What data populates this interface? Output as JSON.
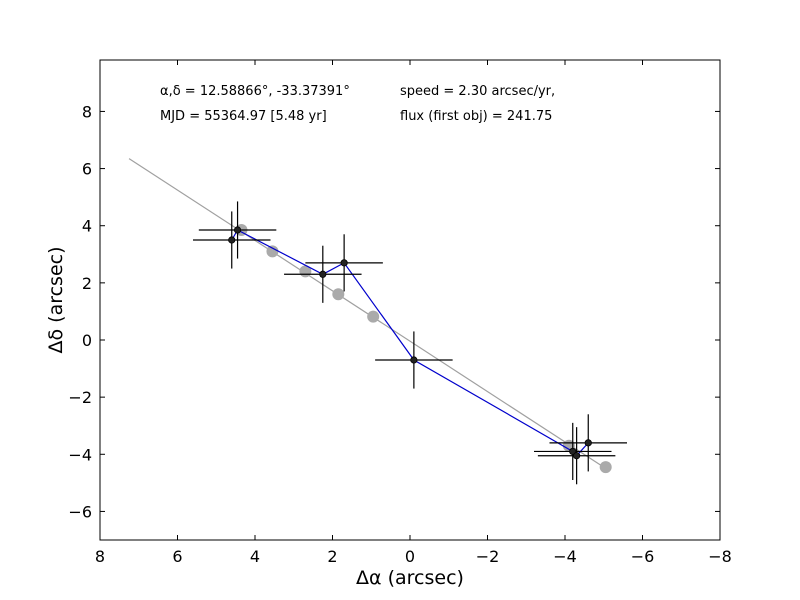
{
  "chart_data": {
    "type": "scatter",
    "xlabel": "Δα (arcsec)",
    "ylabel": "Δδ (arcsec)",
    "xlim": [
      8,
      -8
    ],
    "ylim": [
      -7,
      9.8
    ],
    "x_ticks": [
      8,
      6,
      4,
      2,
      0,
      -2,
      -4,
      -6,
      -8
    ],
    "x_tick_labels": [
      "8",
      "6",
      "4",
      "2",
      "0",
      "−2",
      "−4",
      "−6",
      "−8"
    ],
    "y_ticks": [
      8,
      6,
      4,
      2,
      0,
      -2,
      -4,
      -6
    ],
    "y_tick_labels": [
      "8",
      "6",
      "4",
      "2",
      "0",
      "−2",
      "−4",
      "−6"
    ],
    "grid": false,
    "annotations": {
      "coords": "α,δ = 12.58866°, -33.37391°",
      "mjd": "MJD = 55364.97 [5.48 yr]",
      "speed": "speed = 2.30 arcsec/yr,",
      "flux": "flux (first obj) = 241.75"
    },
    "fit_line": {
      "color": "#a0a0a0",
      "points": [
        [
          7.25,
          6.35
        ],
        [
          -5.0,
          -4.45
        ]
      ]
    },
    "model_points": {
      "color": "#aaaaaa",
      "points": [
        [
          4.35,
          3.85
        ],
        [
          3.55,
          3.1
        ],
        [
          2.7,
          2.4
        ],
        [
          1.85,
          1.6
        ],
        [
          0.95,
          0.82
        ],
        [
          -4.1,
          -3.7
        ],
        [
          -5.05,
          -4.45
        ]
      ]
    },
    "observations": {
      "line_color": "#0000cc",
      "points": [
        {
          "x": 4.6,
          "y": 3.5,
          "xerr": 1.0,
          "yerr": 1.0
        },
        {
          "x": 4.45,
          "y": 3.85,
          "xerr": 1.0,
          "yerr": 1.0
        },
        {
          "x": 2.25,
          "y": 2.3,
          "xerr": 1.0,
          "yerr": 1.0
        },
        {
          "x": 1.7,
          "y": 2.7,
          "xerr": 1.0,
          "yerr": 1.0
        },
        {
          "x": -0.1,
          "y": -0.7,
          "xerr": 1.0,
          "yerr": 1.0
        },
        {
          "x": -4.2,
          "y": -3.9,
          "xerr": 1.0,
          "yerr": 1.0
        },
        {
          "x": -4.3,
          "y": -4.05,
          "xerr": 1.0,
          "yerr": 1.0
        },
        {
          "x": -4.6,
          "y": -3.6,
          "xerr": 1.0,
          "yerr": 1.0
        }
      ]
    }
  }
}
